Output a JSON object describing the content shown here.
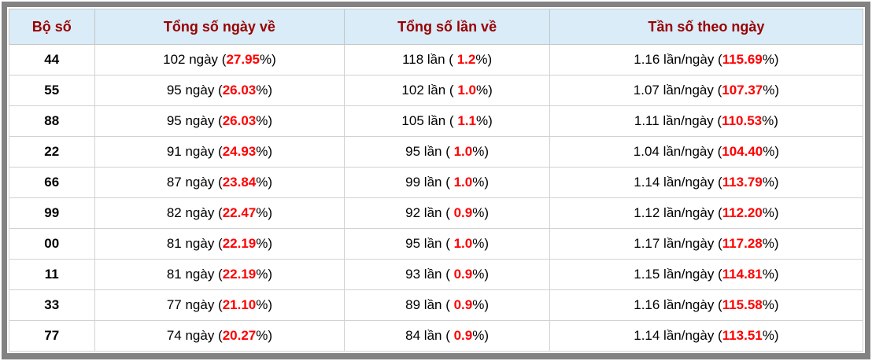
{
  "colors": {
    "frame_border": "#828282",
    "header_bg": "#d9ecf7",
    "header_text": "#990000",
    "value_highlight": "#ff0000",
    "cell_border": "#d2d2d2",
    "body_text": "#000000"
  },
  "table": {
    "headers": [
      "Bộ số",
      "Tổng số ngày về",
      "Tổng số lần về",
      "Tần số theo ngày"
    ],
    "pct_close": "%)",
    "rows": [
      {
        "pair": "44",
        "days_prefix": "102 ngày (",
        "days_pct": "27.95",
        "times_prefix": "118 lần ( ",
        "times_pct": "1.2",
        "freq_prefix": "1.16 lần/ngày (",
        "freq_pct": "115.69"
      },
      {
        "pair": "55",
        "days_prefix": "95 ngày (",
        "days_pct": "26.03",
        "times_prefix": "102 lần ( ",
        "times_pct": "1.0",
        "freq_prefix": "1.07 lần/ngày (",
        "freq_pct": "107.37"
      },
      {
        "pair": "88",
        "days_prefix": "95 ngày (",
        "days_pct": "26.03",
        "times_prefix": "105 lần ( ",
        "times_pct": "1.1",
        "freq_prefix": "1.11 lần/ngày (",
        "freq_pct": "110.53"
      },
      {
        "pair": "22",
        "days_prefix": "91 ngày (",
        "days_pct": "24.93",
        "times_prefix": "95 lần ( ",
        "times_pct": "1.0",
        "freq_prefix": "1.04 lần/ngày (",
        "freq_pct": "104.40"
      },
      {
        "pair": "66",
        "days_prefix": "87 ngày (",
        "days_pct": "23.84",
        "times_prefix": "99 lần ( ",
        "times_pct": "1.0",
        "freq_prefix": "1.14 lần/ngày (",
        "freq_pct": "113.79"
      },
      {
        "pair": "99",
        "days_prefix": "82 ngày (",
        "days_pct": "22.47",
        "times_prefix": "92 lần ( ",
        "times_pct": "0.9",
        "freq_prefix": "1.12 lần/ngày (",
        "freq_pct": "112.20"
      },
      {
        "pair": "00",
        "days_prefix": "81 ngày (",
        "days_pct": "22.19",
        "times_prefix": "95 lần ( ",
        "times_pct": "1.0",
        "freq_prefix": "1.17 lần/ngày (",
        "freq_pct": "117.28"
      },
      {
        "pair": "11",
        "days_prefix": "81 ngày (",
        "days_pct": "22.19",
        "times_prefix": "93 lần ( ",
        "times_pct": "0.9",
        "freq_prefix": "1.15 lần/ngày (",
        "freq_pct": "114.81"
      },
      {
        "pair": "33",
        "days_prefix": "77 ngày (",
        "days_pct": "21.10",
        "times_prefix": "89 lần ( ",
        "times_pct": "0.9",
        "freq_prefix": "1.16 lần/ngày (",
        "freq_pct": "115.58"
      },
      {
        "pair": "77",
        "days_prefix": "74 ngày (",
        "days_pct": "20.27",
        "times_prefix": "84 lần ( ",
        "times_pct": "0.9",
        "freq_prefix": "1.14 lần/ngày (",
        "freq_pct": "113.51"
      }
    ]
  }
}
